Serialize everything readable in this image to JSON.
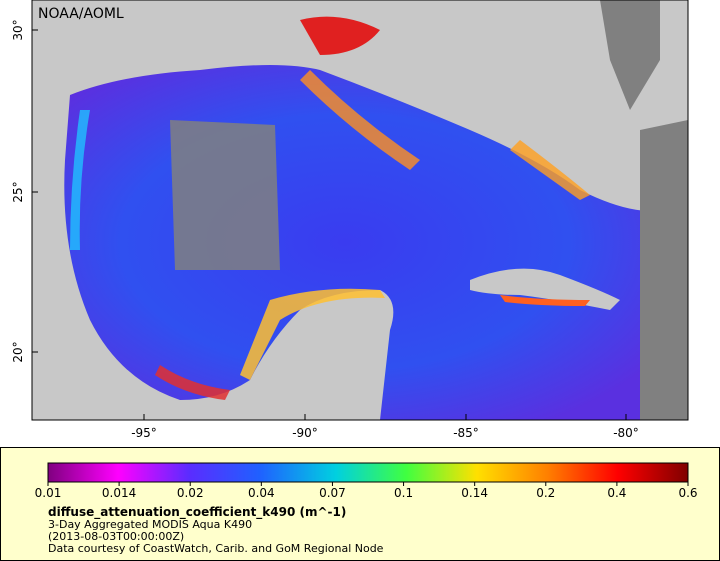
{
  "map": {
    "credit": "NOAA/AOML",
    "lat_labels": [
      "30°",
      "25°",
      "20°"
    ],
    "lon_labels": [
      "-95°",
      "-90°",
      "-85°",
      "-80°"
    ]
  },
  "legend": {
    "ticks": [
      "0.01",
      "0.014",
      "0.02",
      "0.04",
      "0.07",
      "0.1",
      "0.14",
      "0.2",
      "0.4",
      "0.6"
    ],
    "title": "diffuse_attenuation_coefficient_k490 (m^-1)",
    "lines": [
      "3-Day Aggregated MODIS Aqua K490",
      "(2013-08-03T00:00:00Z)",
      "Data courtesy of CoastWatch, Carib. and GoM Regional Node"
    ]
  }
}
